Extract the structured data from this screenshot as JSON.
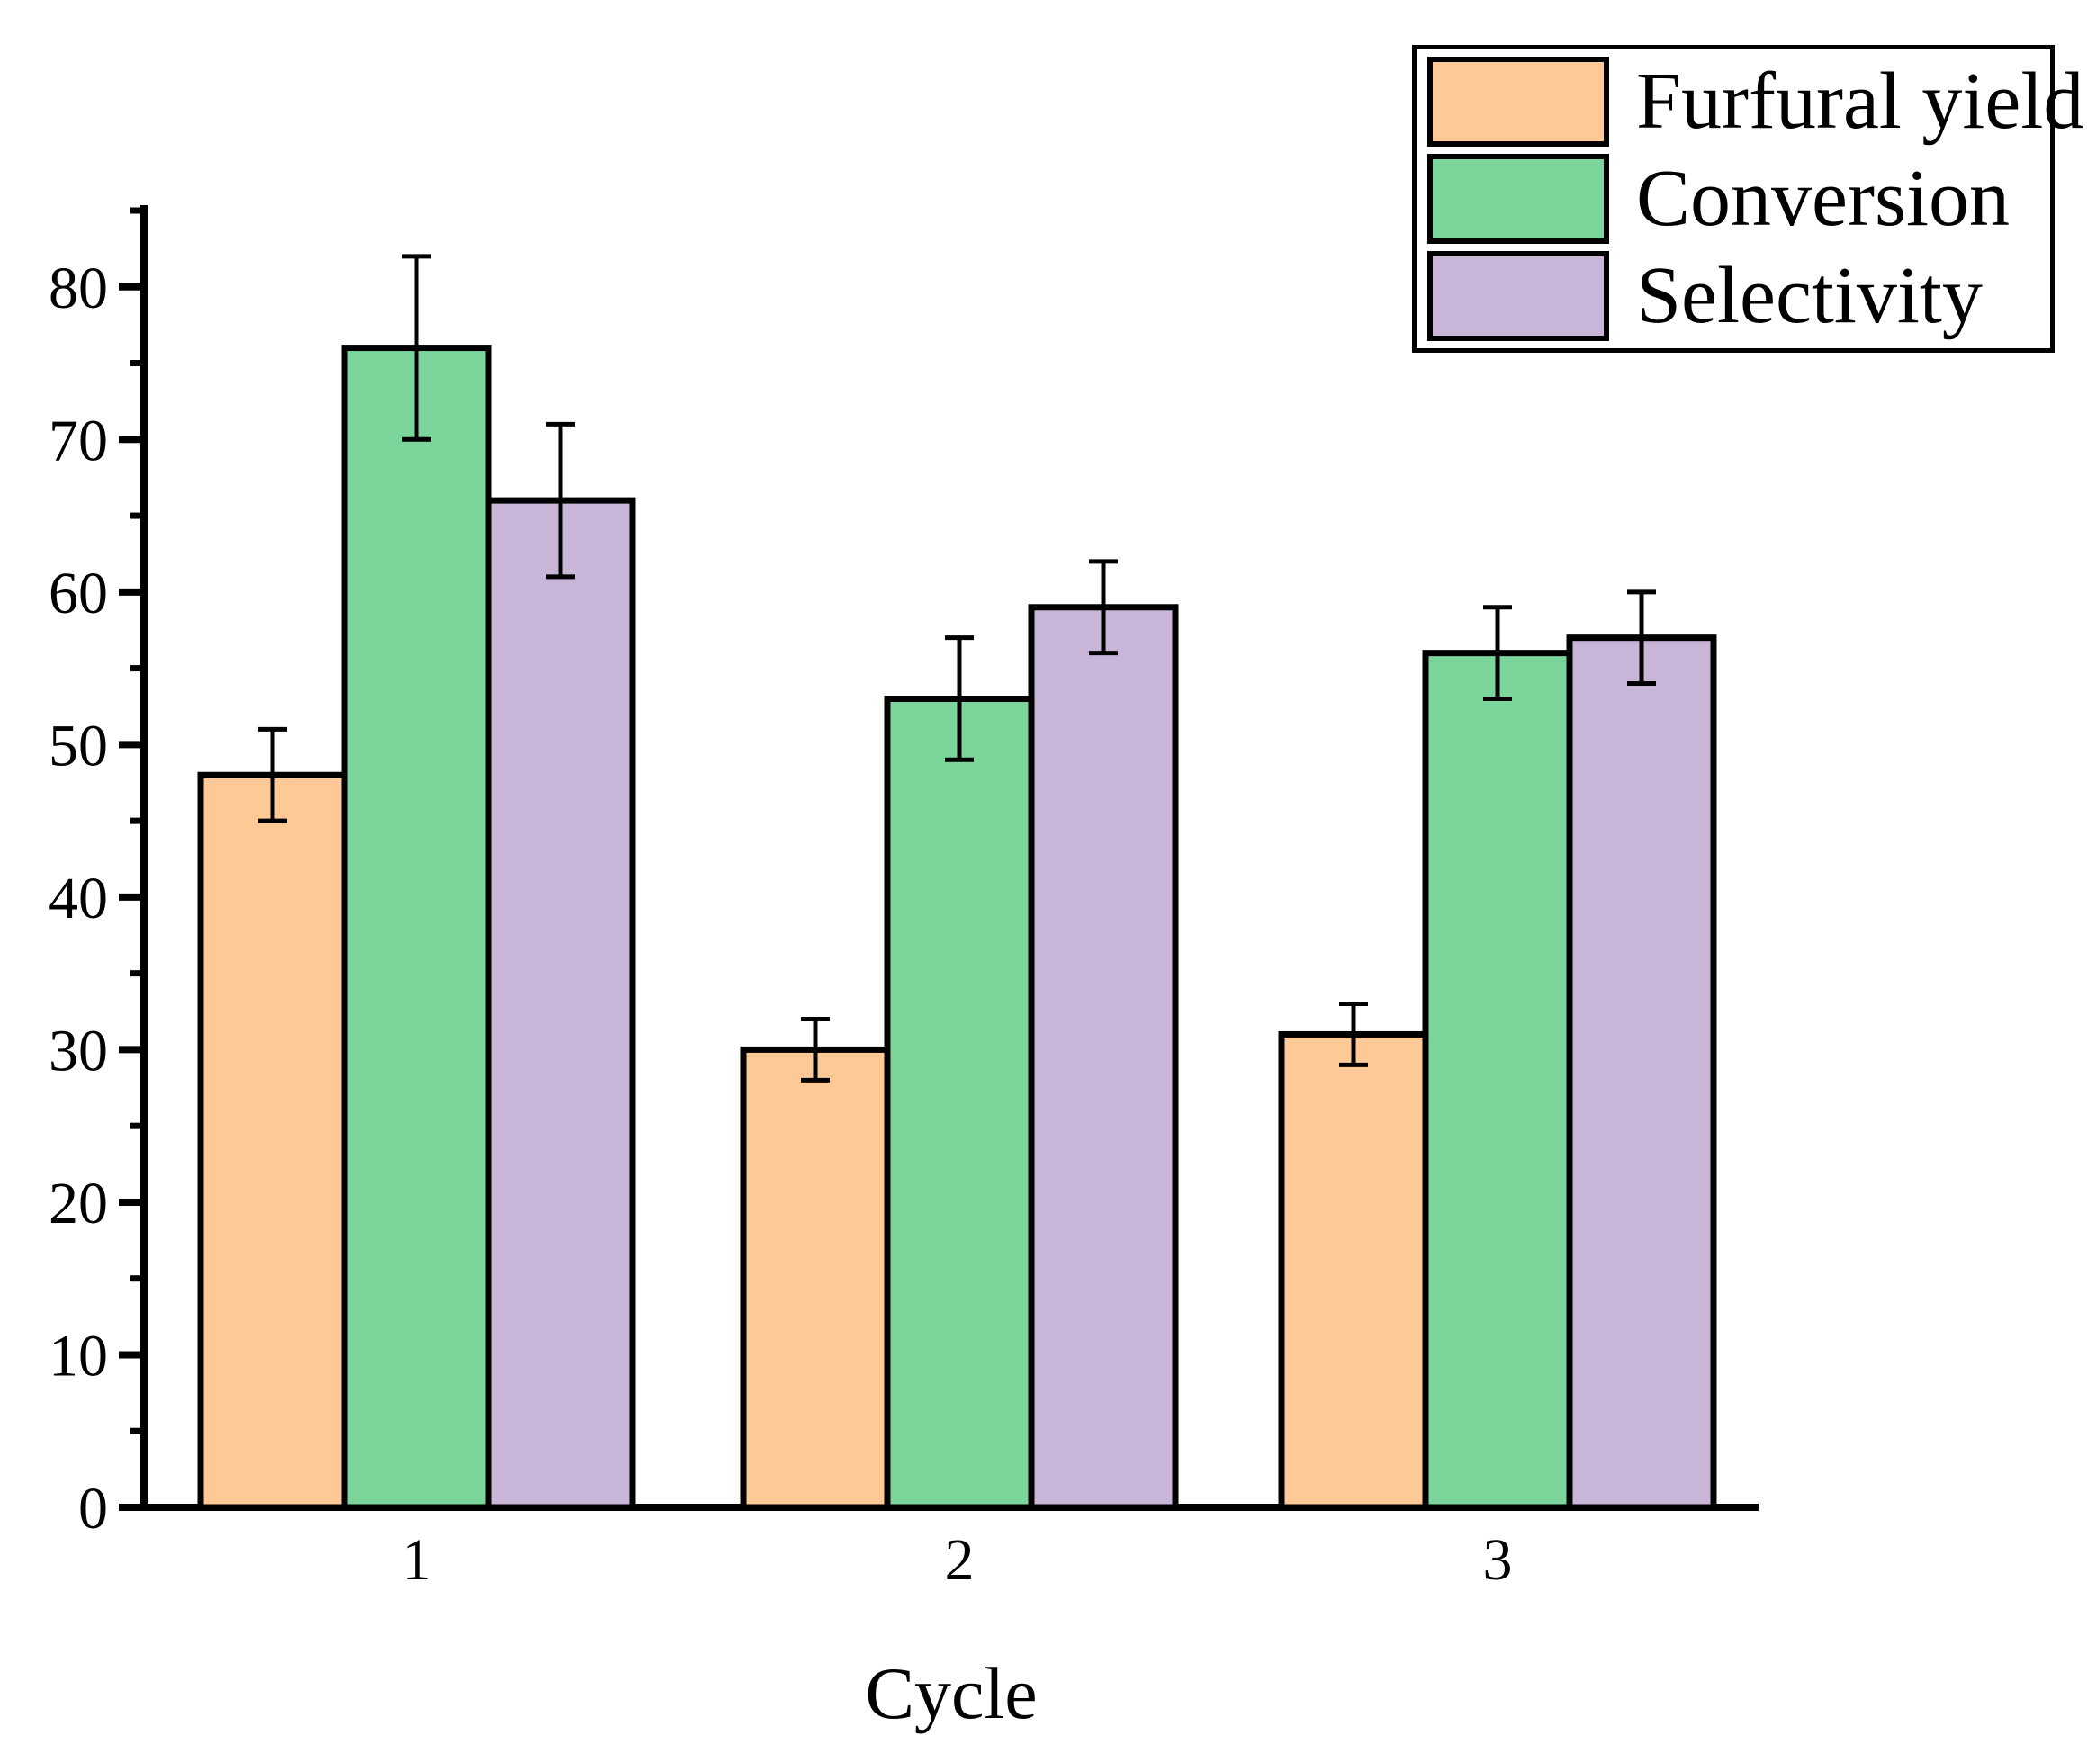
{
  "chart_data": {
    "type": "bar",
    "title": "",
    "xlabel": "Cycle",
    "ylabel": "",
    "categories": [
      "1",
      "2",
      "3"
    ],
    "series": [
      {
        "name": "Furfural yield",
        "color": "#FDC997",
        "values": [
          48,
          30,
          31
        ],
        "errors": [
          3,
          2,
          2
        ]
      },
      {
        "name": "Conversion",
        "color": "#7CD69B",
        "values": [
          76,
          53,
          56
        ],
        "errors": [
          6,
          4,
          3
        ]
      },
      {
        "name": "Selectivity",
        "color": "#C9B5D8",
        "values": [
          66,
          59,
          57
        ],
        "errors": [
          5,
          3,
          3
        ]
      }
    ],
    "ylim": [
      0,
      85
    ],
    "y_major_ticks": [
      0,
      10,
      20,
      30,
      40,
      50,
      60,
      70,
      80
    ],
    "y_minor_step": 5,
    "grid": false,
    "legend_position": "top-right",
    "axis_color": "#000000",
    "bar_outline_color": "#000000",
    "error_bar_color": "#000000"
  }
}
